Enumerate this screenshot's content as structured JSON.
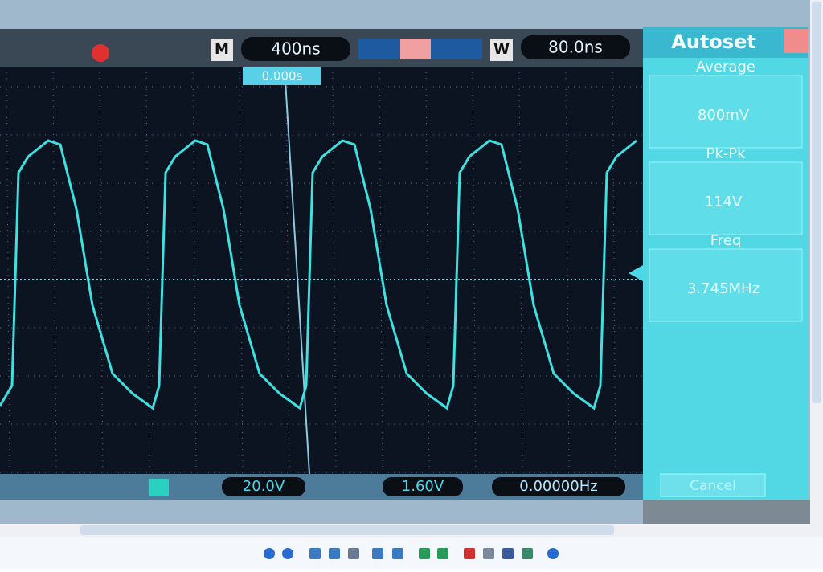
{
  "scope_top": {
    "timebase_marker": "M",
    "timebase": "400ns",
    "window_marker": "W",
    "window": "80.0ns",
    "trigger_position": "0.000s"
  },
  "side_panel": {
    "title": "Autoset",
    "items": [
      {
        "label": "Average",
        "value": "800mV"
      },
      {
        "label": "Pk-Pk",
        "value": "114V"
      },
      {
        "label": "Freq",
        "value": "3.745MHz"
      }
    ],
    "cancel": "Cancel"
  },
  "scope_bottom": {
    "channel_scale": "20.0V",
    "trigger_level": "1.60V",
    "frequency": "0.00000Hz"
  }
}
